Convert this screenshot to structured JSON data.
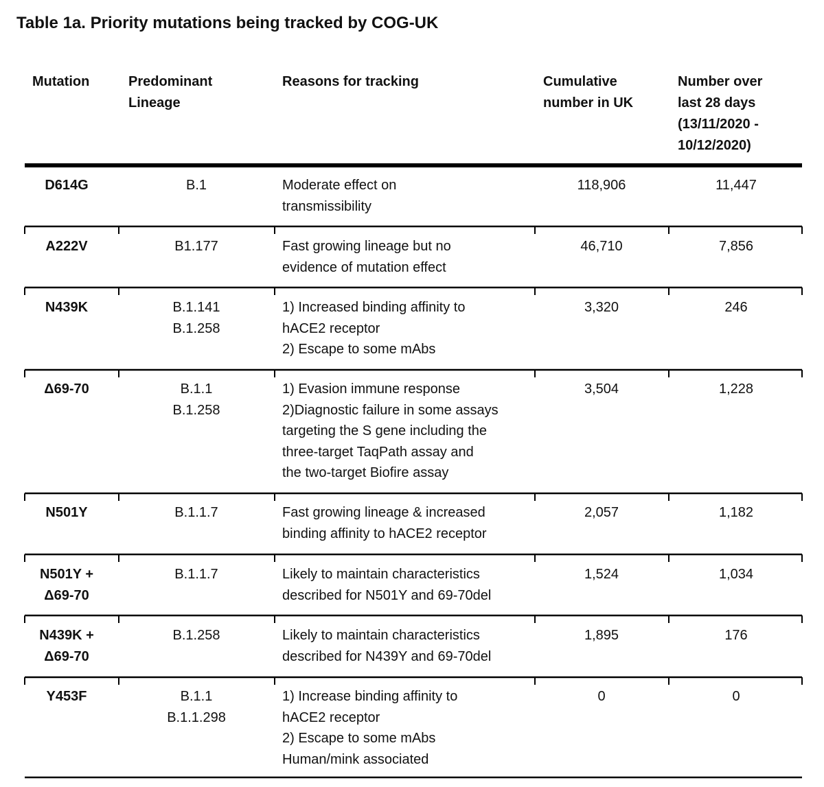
{
  "title": "Table 1a. Priority mutations being tracked by COG-UK",
  "table": {
    "header": [
      [
        "Mutation"
      ],
      [
        "Predominant",
        "Lineage"
      ],
      [
        "Reasons for tracking"
      ],
      [
        "Cumulative",
        "number in UK"
      ],
      [
        "Number over",
        "last 28 days",
        "(13/11/2020 -",
        "10/12/2020)"
      ]
    ],
    "rows": [
      {
        "mutation": [
          "D614G"
        ],
        "lineage": [
          "B.1"
        ],
        "reasons": [
          "Moderate effect on",
          "transmissibility"
        ],
        "cumulative": "118,906",
        "recent": "11,447"
      },
      {
        "mutation": [
          "A222V"
        ],
        "lineage": [
          "B1.177"
        ],
        "reasons": [
          "Fast growing lineage but no",
          "evidence of mutation effect"
        ],
        "cumulative": "46,710",
        "recent": "7,856"
      },
      {
        "mutation": [
          "N439K"
        ],
        "lineage": [
          "B.1.141",
          "B.1.258"
        ],
        "reasons": [
          "1) Increased binding affinity to",
          "hACE2 receptor",
          "2) Escape to some mAbs"
        ],
        "cumulative": "3,320",
        "recent": "246"
      },
      {
        "mutation": [
          "Δ69-70"
        ],
        "lineage": [
          "B.1.1",
          "B.1.258"
        ],
        "reasons": [
          "1) Evasion immune response",
          "2)Diagnostic failure in some assays",
          "targeting the S gene including the",
          "three-target TaqPath assay and",
          "the two-target Biofire assay"
        ],
        "cumulative": "3,504",
        "recent": "1,228"
      },
      {
        "mutation": [
          "N501Y"
        ],
        "lineage": [
          "B.1.1.7"
        ],
        "reasons": [
          "Fast growing lineage & increased",
          "binding affinity to hACE2 receptor"
        ],
        "cumulative": "2,057",
        "recent": "1,182"
      },
      {
        "mutation": [
          "N501Y +",
          "Δ69-70"
        ],
        "lineage": [
          "B.1.1.7"
        ],
        "reasons": [
          "Likely to maintain characteristics",
          "described for N501Y and 69-70del"
        ],
        "cumulative": "1,524",
        "recent": "1,034"
      },
      {
        "mutation": [
          "N439K +",
          "Δ69-70"
        ],
        "lineage": [
          "B.1.258"
        ],
        "reasons": [
          "Likely to maintain characteristics",
          "described for N439Y and 69-70del"
        ],
        "cumulative": "1,895",
        "recent": "176"
      },
      {
        "mutation": [
          "Y453F"
        ],
        "lineage": [
          "B.1.1",
          "B.1.1.298"
        ],
        "reasons": [
          "1) Increase binding affinity to",
          "hACE2 receptor",
          "2) Escape to some mAbs",
          "Human/mink associated"
        ],
        "cumulative": "0",
        "recent": "0"
      }
    ]
  }
}
